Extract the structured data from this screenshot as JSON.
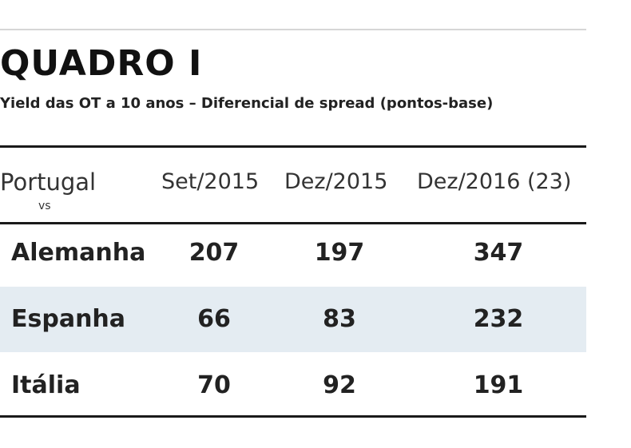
{
  "title": "QUADRO I",
  "subtitle": "Yield das OT a 10 anos – Diferencial de spread (pontos-base)",
  "chart_data": {
    "type": "table",
    "title": "QUADRO I",
    "subtitle": "Yield das OT a 10 anos – Diferencial de spread (pontos-base)",
    "header": {
      "country": "Portugal",
      "vs": "vs",
      "columns": [
        "Set/2015",
        "Dez/2015",
        "Dez/2016 (23)"
      ]
    },
    "rows": [
      {
        "label": "Alemanha",
        "values": [
          207,
          197,
          347
        ]
      },
      {
        "label": "Espanha",
        "values": [
          66,
          83,
          232
        ]
      },
      {
        "label": "Itália",
        "values": [
          70,
          92,
          191
        ]
      }
    ],
    "colors": {
      "stripe": "#e4ecf2",
      "rule": "#1a1a1a"
    }
  }
}
